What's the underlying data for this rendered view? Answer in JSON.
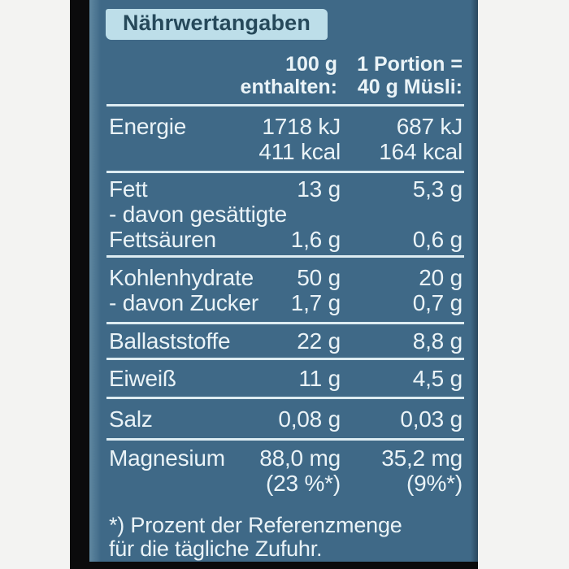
{
  "label": {
    "title": "Nährwertangaben",
    "columns": {
      "per100": [
        "100 g",
        "enthalten:"
      ],
      "portion": [
        "1 Portion =",
        "40 g Müsli:"
      ]
    },
    "rows": [
      {
        "name": "energie",
        "lines": [
          {
            "label": "Energie",
            "v100": "1718 kJ",
            "vp": "687 kJ"
          },
          {
            "label": "",
            "v100": "411 kcal",
            "vp": "164 kcal"
          }
        ]
      },
      {
        "name": "fett",
        "lines": [
          {
            "label": "Fett",
            "v100": "13 g",
            "vp": "5,3 g"
          },
          {
            "label": "- davon gesättigte",
            "v100": "",
            "vp": ""
          },
          {
            "label": "Fettsäuren",
            "v100": "1,6 g",
            "vp": "0,6 g"
          }
        ]
      },
      {
        "name": "kohlenhydrate",
        "lines": [
          {
            "label": "Kohlenhydrate",
            "v100": "50 g",
            "vp": "20 g"
          },
          {
            "label": "- davon Zucker",
            "v100": "1,7 g",
            "vp": "0,7 g"
          }
        ]
      },
      {
        "name": "ballaststoffe",
        "lines": [
          {
            "label": "Ballaststoffe",
            "v100": "22 g",
            "vp": "8,8 g"
          }
        ]
      },
      {
        "name": "eiweiss",
        "lines": [
          {
            "label": "Eiweiß",
            "v100": "11 g",
            "vp": "4,5 g"
          }
        ]
      },
      {
        "name": "salz",
        "lines": [
          {
            "label": "Salz",
            "v100": "0,08 g",
            "vp": "0,03 g"
          }
        ]
      },
      {
        "name": "magnesium",
        "lines": [
          {
            "label": "Magnesium",
            "v100": "88,0 mg",
            "vp": "35,2 mg"
          },
          {
            "label": "",
            "v100": "(23 %*)",
            "vp": "(9%*)"
          }
        ]
      }
    ],
    "footnote": [
      "*) Prozent der Referenzmenge",
      "für die tägliche Zufuhr."
    ]
  },
  "colors": {
    "background_white": "#f3f3f2",
    "edge_black": "#0b0b0c",
    "panel_bg": "#3f6987",
    "text": "#eaf3f7",
    "line": "#ddecf2",
    "badge_bg": "#bddee9",
    "badge_text": "#26495a"
  }
}
